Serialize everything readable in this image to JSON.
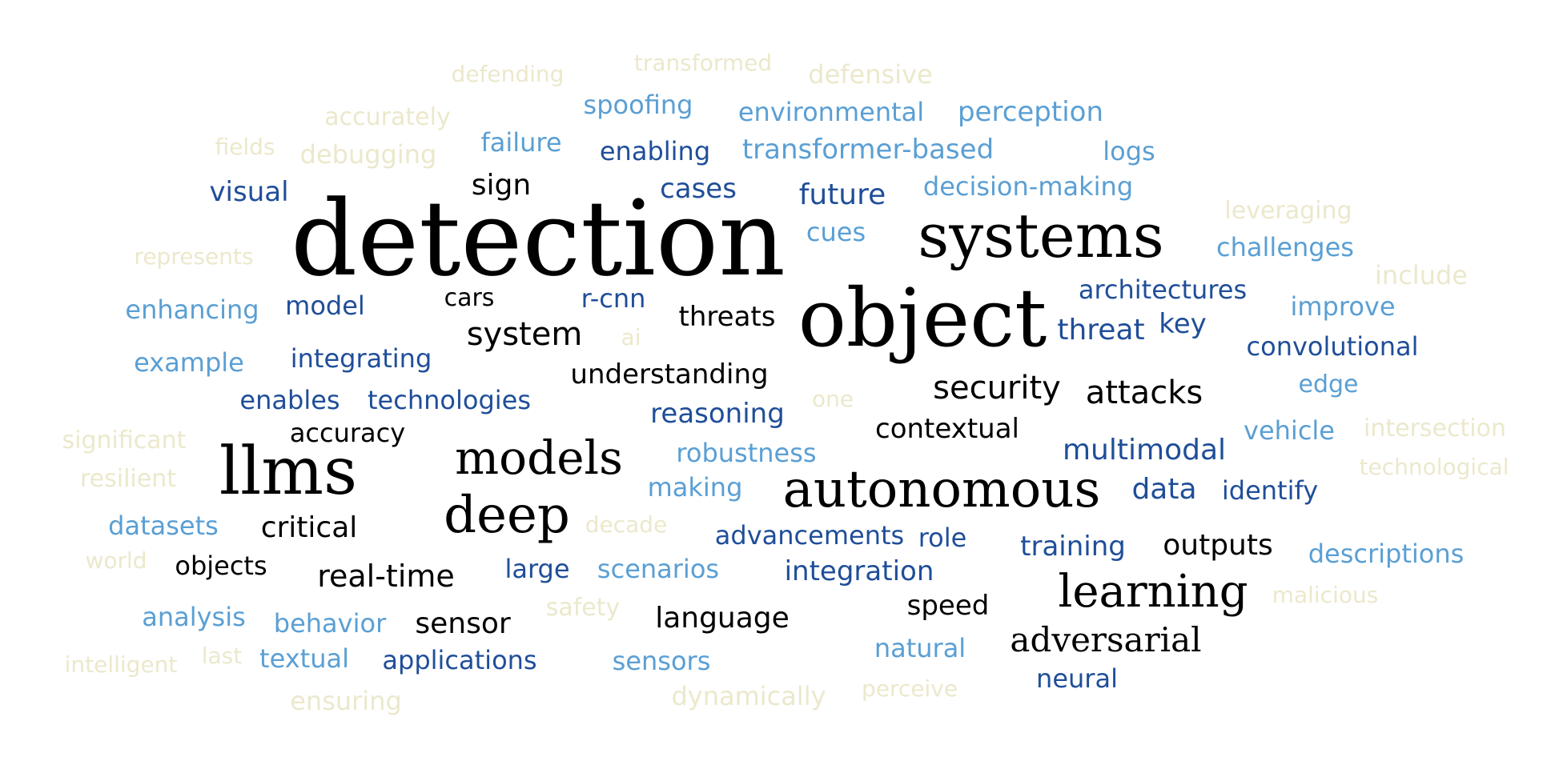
{
  "palette": {
    "black": "#000000",
    "dark_blue": "#1f4e99",
    "mid_blue": "#3a7ab8",
    "light_blue": "#5a9fd4",
    "cream": "#ece8cc"
  },
  "words": [
    {
      "text": "detection",
      "color": "black"
    },
    {
      "text": "object",
      "color": "black"
    },
    {
      "text": "systems",
      "color": "black"
    },
    {
      "text": "llms",
      "color": "black"
    },
    {
      "text": "autonomous",
      "color": "black"
    },
    {
      "text": "deep",
      "color": "black"
    },
    {
      "text": "models",
      "color": "black"
    },
    {
      "text": "learning",
      "color": "black"
    },
    {
      "text": "adversarial",
      "color": "black"
    },
    {
      "text": "security",
      "color": "black"
    },
    {
      "text": "attacks",
      "color": "black"
    },
    {
      "text": "system",
      "color": "black"
    },
    {
      "text": "real-time",
      "color": "black"
    },
    {
      "text": "critical",
      "color": "black"
    },
    {
      "text": "understanding",
      "color": "black"
    },
    {
      "text": "contextual",
      "color": "black"
    },
    {
      "text": "threats",
      "color": "black"
    },
    {
      "text": "sign",
      "color": "black"
    },
    {
      "text": "cars",
      "color": "black"
    },
    {
      "text": "accuracy",
      "color": "black"
    },
    {
      "text": "objects",
      "color": "black"
    },
    {
      "text": "sensor",
      "color": "black"
    },
    {
      "text": "language",
      "color": "black"
    },
    {
      "text": "speed",
      "color": "black"
    },
    {
      "text": "outputs",
      "color": "black"
    },
    {
      "text": "visual",
      "color": "dark_blue"
    },
    {
      "text": "enabling",
      "color": "dark_blue"
    },
    {
      "text": "cases",
      "color": "dark_blue"
    },
    {
      "text": "future",
      "color": "dark_blue"
    },
    {
      "text": "model",
      "color": "dark_blue"
    },
    {
      "text": "r-cnn",
      "color": "dark_blue"
    },
    {
      "text": "architectures",
      "color": "dark_blue"
    },
    {
      "text": "threat",
      "color": "dark_blue"
    },
    {
      "text": "key",
      "color": "dark_blue"
    },
    {
      "text": "convolutional",
      "color": "dark_blue"
    },
    {
      "text": "integrating",
      "color": "dark_blue"
    },
    {
      "text": "enables",
      "color": "dark_blue"
    },
    {
      "text": "technologies",
      "color": "dark_blue"
    },
    {
      "text": "reasoning",
      "color": "dark_blue"
    },
    {
      "text": "multimodal",
      "color": "dark_blue"
    },
    {
      "text": "data",
      "color": "dark_blue"
    },
    {
      "text": "identify",
      "color": "dark_blue"
    },
    {
      "text": "advancements",
      "color": "dark_blue"
    },
    {
      "text": "role",
      "color": "dark_blue"
    },
    {
      "text": "training",
      "color": "dark_blue"
    },
    {
      "text": "large",
      "color": "dark_blue"
    },
    {
      "text": "integration",
      "color": "dark_blue"
    },
    {
      "text": "applications",
      "color": "dark_blue"
    },
    {
      "text": "neural",
      "color": "dark_blue"
    },
    {
      "text": "spoofing",
      "color": "light_blue"
    },
    {
      "text": "environmental",
      "color": "light_blue"
    },
    {
      "text": "perception",
      "color": "light_blue"
    },
    {
      "text": "failure",
      "color": "light_blue"
    },
    {
      "text": "transformer-based",
      "color": "light_blue"
    },
    {
      "text": "logs",
      "color": "light_blue"
    },
    {
      "text": "decision-making",
      "color": "light_blue"
    },
    {
      "text": "cues",
      "color": "light_blue"
    },
    {
      "text": "challenges",
      "color": "light_blue"
    },
    {
      "text": "enhancing",
      "color": "light_blue"
    },
    {
      "text": "improve",
      "color": "light_blue"
    },
    {
      "text": "example",
      "color": "light_blue"
    },
    {
      "text": "edge",
      "color": "light_blue"
    },
    {
      "text": "vehicle",
      "color": "light_blue"
    },
    {
      "text": "robustness",
      "color": "light_blue"
    },
    {
      "text": "making",
      "color": "light_blue"
    },
    {
      "text": "datasets",
      "color": "light_blue"
    },
    {
      "text": "descriptions",
      "color": "light_blue"
    },
    {
      "text": "scenarios",
      "color": "light_blue"
    },
    {
      "text": "analysis",
      "color": "light_blue"
    },
    {
      "text": "behavior",
      "color": "light_blue"
    },
    {
      "text": "textual",
      "color": "light_blue"
    },
    {
      "text": "sensors",
      "color": "light_blue"
    },
    {
      "text": "natural",
      "color": "light_blue"
    },
    {
      "text": "defending",
      "color": "cream"
    },
    {
      "text": "transformed",
      "color": "cream"
    },
    {
      "text": "defensive",
      "color": "cream"
    },
    {
      "text": "accurately",
      "color": "cream"
    },
    {
      "text": "fields",
      "color": "cream"
    },
    {
      "text": "debugging",
      "color": "cream"
    },
    {
      "text": "leveraging",
      "color": "cream"
    },
    {
      "text": "represents",
      "color": "cream"
    },
    {
      "text": "include",
      "color": "cream"
    },
    {
      "text": "ai",
      "color": "cream"
    },
    {
      "text": "one",
      "color": "cream"
    },
    {
      "text": "significant",
      "color": "cream"
    },
    {
      "text": "intersection",
      "color": "cream"
    },
    {
      "text": "resilient",
      "color": "cream"
    },
    {
      "text": "technological",
      "color": "cream"
    },
    {
      "text": "decade",
      "color": "cream"
    },
    {
      "text": "world",
      "color": "cream"
    },
    {
      "text": "safety",
      "color": "cream"
    },
    {
      "text": "malicious",
      "color": "cream"
    },
    {
      "text": "intelligent",
      "color": "cream"
    },
    {
      "text": "last",
      "color": "cream"
    },
    {
      "text": "ensuring",
      "color": "cream"
    },
    {
      "text": "dynamically",
      "color": "cream"
    },
    {
      "text": "perceive",
      "color": "cream"
    }
  ]
}
